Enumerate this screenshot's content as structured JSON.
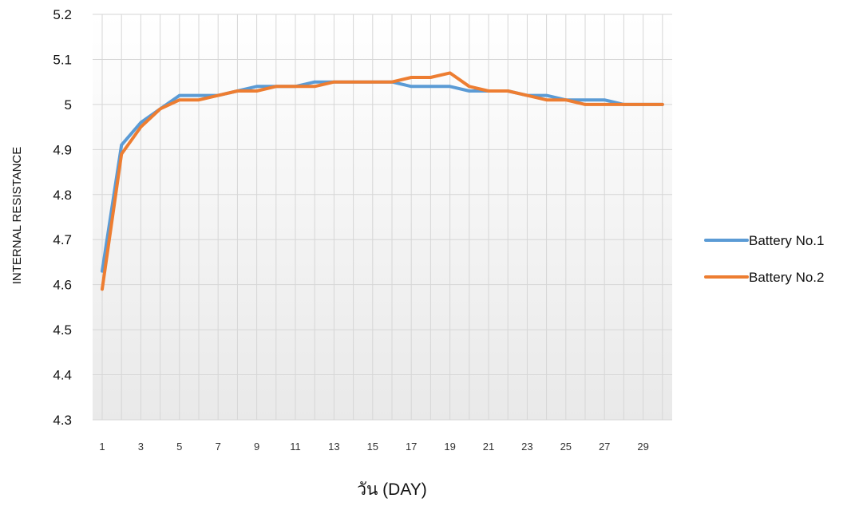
{
  "chart_data": {
    "type": "line",
    "title": "",
    "xlabel": "วัน (DAY)",
    "ylabel": "INTERNAL RESISTANCE",
    "ylim": [
      4.3,
      5.2
    ],
    "y_ticks": [
      "4.3",
      "4.4",
      "4.5",
      "4.6",
      "4.7",
      "4.8",
      "4.9",
      "5",
      "5.1",
      "5.2"
    ],
    "x_tick_labels": [
      "1",
      "3",
      "5",
      "7",
      "9",
      "11",
      "13",
      "15",
      "17",
      "19",
      "21",
      "23",
      "25",
      "27",
      "29"
    ],
    "x": [
      1,
      2,
      3,
      4,
      5,
      6,
      7,
      8,
      9,
      10,
      11,
      12,
      13,
      14,
      15,
      16,
      17,
      18,
      19,
      20,
      21,
      22,
      23,
      24,
      25,
      26,
      27,
      28,
      29,
      30
    ],
    "grid": true,
    "legend_position": "right",
    "series": [
      {
        "name": "Battery No.1",
        "color": "#5b9bd5",
        "values": [
          4.63,
          4.91,
          4.96,
          4.99,
          5.02,
          5.02,
          5.02,
          5.03,
          5.04,
          5.04,
          5.04,
          5.05,
          5.05,
          5.05,
          5.05,
          5.05,
          5.04,
          5.04,
          5.04,
          5.03,
          5.03,
          5.03,
          5.02,
          5.02,
          5.01,
          5.01,
          5.01,
          5.0,
          5.0,
          5.0
        ]
      },
      {
        "name": "Battery No.2",
        "color": "#ed7d31",
        "values": [
          4.59,
          4.89,
          4.95,
          4.99,
          5.01,
          5.01,
          5.02,
          5.03,
          5.03,
          5.04,
          5.04,
          5.04,
          5.05,
          5.05,
          5.05,
          5.05,
          5.06,
          5.06,
          5.07,
          5.04,
          5.03,
          5.03,
          5.02,
          5.01,
          5.01,
          5.0,
          5.0,
          5.0,
          5.0,
          5.0
        ]
      }
    ]
  }
}
